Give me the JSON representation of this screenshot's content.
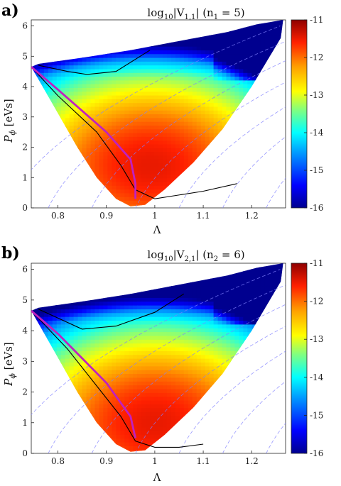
{
  "colorbar": {
    "min": -16,
    "max": -11,
    "ticks": [
      -11,
      -12,
      -13,
      -14,
      -15,
      -16
    ],
    "colormap": [
      "#00008f",
      "#0000ff",
      "#00a0ff",
      "#00ffff",
      "#80ff80",
      "#ffff00",
      "#ffa000",
      "#ff2000",
      "#8f0000"
    ]
  },
  "chart_data": [
    {
      "type": "heatmap",
      "panel_label": "a)",
      "title_prefix": "log",
      "title_sub": "10",
      "title_rest": "|V",
      "title_index": "1,1",
      "title_tail": "| (n",
      "title_n_index": "1",
      "title_end": " = 5)",
      "xlabel": "Λ",
      "ylabel_main": "P",
      "ylabel_sub": "ϕ",
      "ylabel_unit": " [eVs]",
      "xlim": [
        0.745,
        1.27
      ],
      "ylim": [
        0,
        6.2
      ],
      "xticks": [
        "0.8",
        "0.9",
        "1",
        "1.1",
        "1.2"
      ],
      "yticks": [
        "0",
        "1",
        "2",
        "3",
        "4",
        "5",
        "6"
      ],
      "colorbar_range": [
        -16,
        -11
      ],
      "magenta_curve": [
        [
          0.745,
          4.65
        ],
        [
          0.8,
          3.9
        ],
        [
          0.85,
          3.2
        ],
        [
          0.9,
          2.5
        ],
        [
          0.95,
          1.6
        ],
        [
          0.96,
          0.8
        ],
        [
          0.96,
          0.3
        ]
      ],
      "black_curve_upper": [
        [
          0.76,
          4.7
        ],
        [
          0.82,
          4.5
        ],
        [
          0.86,
          4.4
        ],
        [
          0.92,
          4.5
        ],
        [
          0.99,
          5.2
        ]
      ],
      "black_curve_lower": [
        [
          0.745,
          4.65
        ],
        [
          0.8,
          3.7
        ],
        [
          0.88,
          2.5
        ],
        [
          0.93,
          1.4
        ],
        [
          0.96,
          0.6
        ],
        [
          1.0,
          0.3
        ],
        [
          1.1,
          0.55
        ],
        [
          1.17,
          0.8
        ]
      ]
    },
    {
      "type": "heatmap",
      "panel_label": "b)",
      "title_prefix": "log",
      "title_sub": "10",
      "title_rest": "|V",
      "title_index": "2,1",
      "title_tail": "| (n",
      "title_n_index": "2",
      "title_end": " = 6)",
      "xlabel": "Λ",
      "ylabel_main": "P",
      "ylabel_sub": "ϕ",
      "ylabel_unit": " [eVs]",
      "xlim": [
        0.745,
        1.27
      ],
      "ylim": [
        0,
        6.2
      ],
      "xticks": [
        "0.8",
        "0.9",
        "1",
        "1.1",
        "1.2"
      ],
      "yticks": [
        "0",
        "1",
        "2",
        "3",
        "4",
        "5",
        "6"
      ],
      "colorbar_range": [
        -16,
        -11
      ],
      "magenta_curve": [
        [
          0.745,
          4.65
        ],
        [
          0.8,
          3.9
        ],
        [
          0.85,
          3.1
        ],
        [
          0.9,
          2.3
        ],
        [
          0.95,
          1.2
        ],
        [
          0.96,
          0.5
        ]
      ],
      "black_curve_upper": [
        [
          0.76,
          4.7
        ],
        [
          0.85,
          4.05
        ],
        [
          0.92,
          4.15
        ],
        [
          1.0,
          4.6
        ],
        [
          1.06,
          5.2
        ]
      ],
      "black_curve_lower": [
        [
          0.745,
          4.65
        ],
        [
          0.82,
          3.4
        ],
        [
          0.88,
          2.2
        ],
        [
          0.93,
          1.2
        ],
        [
          0.96,
          0.4
        ],
        [
          1.0,
          0.2
        ],
        [
          1.05,
          0.2
        ],
        [
          1.1,
          0.3
        ]
      ]
    }
  ]
}
